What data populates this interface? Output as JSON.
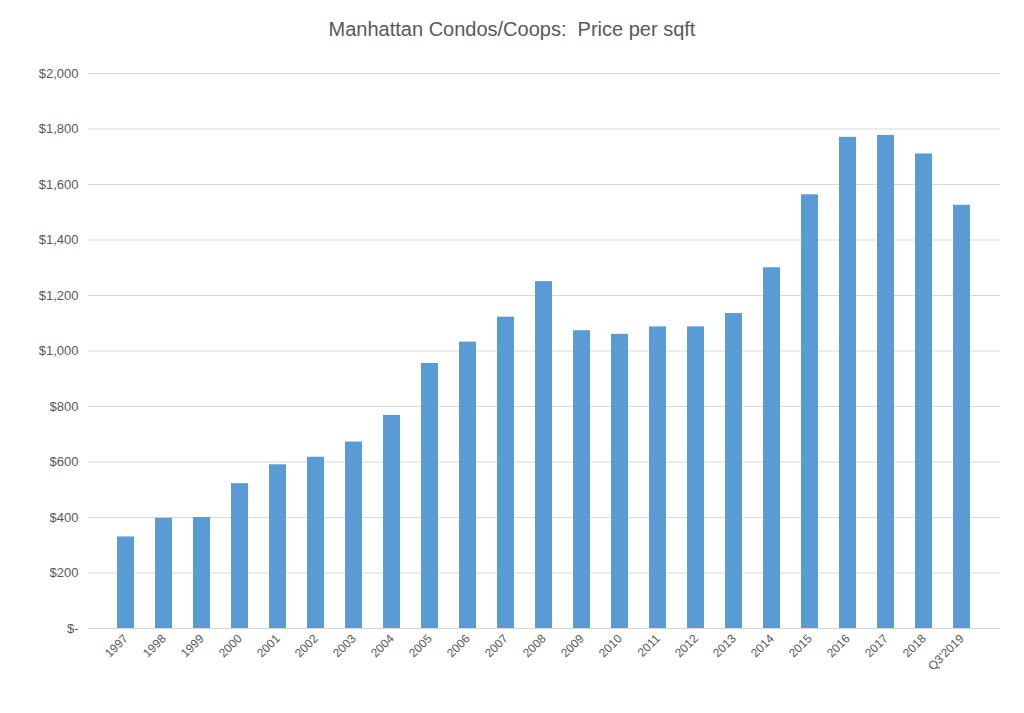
{
  "chart_data": {
    "type": "bar",
    "title": "Manhattan Condos/Coops:  Price per sqft",
    "categories": [
      "1997",
      "1998",
      "1999",
      "2000",
      "2001",
      "2002",
      "2003",
      "2004",
      "2005",
      "2006",
      "2007",
      "2008",
      "2009",
      "2010",
      "2011",
      "2012",
      "2013",
      "2014",
      "2015",
      "2016",
      "2017",
      "2018",
      "Q3'2019"
    ],
    "values": [
      330,
      397,
      400,
      522,
      590,
      617,
      672,
      768,
      955,
      1032,
      1122,
      1250,
      1073,
      1060,
      1087,
      1087,
      1135,
      1300,
      1563,
      1770,
      1777,
      1710,
      1525
    ],
    "color": "#5b9bd5",
    "ylim": [
      0,
      2000
    ],
    "yticks": [
      {
        "value": 0,
        "label": "$-"
      },
      {
        "value": 200,
        "label": "$200"
      },
      {
        "value": 400,
        "label": "$400"
      },
      {
        "value": 600,
        "label": "$600"
      },
      {
        "value": 800,
        "label": "$800"
      },
      {
        "value": 1000,
        "label": "$1,000"
      },
      {
        "value": 1200,
        "label": "$1,200"
      },
      {
        "value": 1400,
        "label": "$1,400"
      },
      {
        "value": 1600,
        "label": "$1,600"
      },
      {
        "value": 1800,
        "label": "$1,800"
      },
      {
        "value": 2000,
        "label": "$2,000"
      }
    ],
    "grid": true
  }
}
